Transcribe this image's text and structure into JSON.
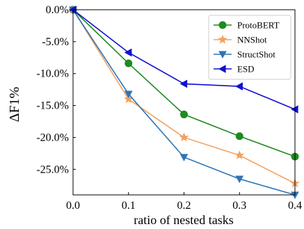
{
  "chart_data": {
    "type": "line",
    "xlabel": "ratio of nested tasks",
    "ylabel": "ΔF1%",
    "x": [
      0.0,
      0.1,
      0.2,
      0.3,
      0.4
    ],
    "xlim": [
      0.0,
      0.4
    ],
    "ylim": [
      -29.0,
      0.0
    ],
    "x_ticks": [
      0.0,
      0.1,
      0.2,
      0.3,
      0.4
    ],
    "x_tick_labels": [
      "0.0",
      "0.1",
      "0.2",
      "0.3",
      "0.4"
    ],
    "y_ticks": [
      0,
      -5,
      -10,
      -15,
      -20,
      -25
    ],
    "y_tick_labels": [
      "0.0%",
      "-5.0%",
      "-10.0%",
      "-15.0%",
      "-20.0%",
      "-25.0%"
    ],
    "grid": false,
    "legend_position": "top-right",
    "series": [
      {
        "name": "ProtoBERT",
        "color": "#1f8a1f",
        "marker": "circle",
        "values": [
          0.0,
          -8.4,
          -16.4,
          -19.8,
          -23.0
        ]
      },
      {
        "name": "NNShot",
        "color": "#f2a261",
        "marker": "star",
        "values": [
          0.0,
          -14.0,
          -20.0,
          -22.8,
          -27.2
        ]
      },
      {
        "name": "StructShot",
        "color": "#2f74b5",
        "marker": "triangle-down",
        "values": [
          0.0,
          -13.2,
          -23.1,
          -26.5,
          -29.0
        ]
      },
      {
        "name": "ESD",
        "color": "#1010d0",
        "marker": "triangle-left",
        "values": [
          0.0,
          -6.7,
          -11.6,
          -12.0,
          -15.6
        ]
      }
    ]
  }
}
